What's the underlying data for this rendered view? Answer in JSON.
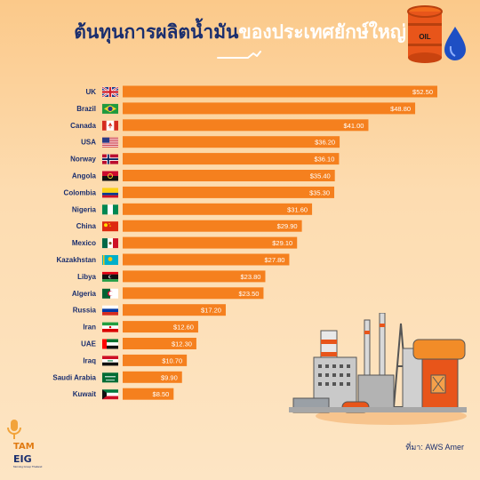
{
  "title": {
    "part1": "ต้นทุนการผลิตน้ำมัน",
    "part2": "ของประเทศยักษ์ใหญ่"
  },
  "barrel_label": "OIL",
  "source": "ที่มา: AWS Amer",
  "logo": {
    "top": "TAM",
    "bottom": "EIG",
    "tagline": "Morning Group Thailand"
  },
  "colors": {
    "bar": "#f5801e",
    "title_dark": "#1a2e6e",
    "label": "#1a2e6e"
  },
  "chart_data": {
    "type": "bar",
    "orientation": "horizontal",
    "categories": [
      "UK",
      "Brazil",
      "Canada",
      "USA",
      "Norway",
      "Angola",
      "Colombia",
      "Nigeria",
      "China",
      "Mexico",
      "Kazakhstan",
      "Libya",
      "Algeria",
      "Russia",
      "Iran",
      "UAE",
      "Iraq",
      "Saudi Arabia",
      "Kuwait"
    ],
    "values": [
      52.5,
      48.8,
      41.0,
      36.2,
      36.1,
      35.4,
      35.3,
      31.6,
      29.9,
      29.1,
      27.8,
      23.8,
      23.5,
      17.2,
      12.6,
      12.3,
      10.7,
      9.9,
      8.5
    ],
    "value_labels": [
      "$52.50",
      "$48.80",
      "$41.00",
      "$36.20",
      "$36.10",
      "$35.40",
      "$35.30",
      "$31.60",
      "$29.90",
      "$29.10",
      "$27.80",
      "$23.80",
      "$23.50",
      "$17.20",
      "$12.60",
      "$12.30",
      "$10.70",
      "$9.90",
      "$8.50"
    ],
    "flags": [
      "uk",
      "brazil",
      "canada",
      "usa",
      "norway",
      "angola",
      "colombia",
      "nigeria",
      "china",
      "mexico",
      "kazakhstan",
      "libya",
      "algeria",
      "russia",
      "iran",
      "uae",
      "iraq",
      "saudi-arabia",
      "kuwait"
    ],
    "title": "",
    "xlabel": "",
    "ylabel": "",
    "xlim": [
      0,
      52.5
    ],
    "grid": false,
    "legend": "none"
  }
}
